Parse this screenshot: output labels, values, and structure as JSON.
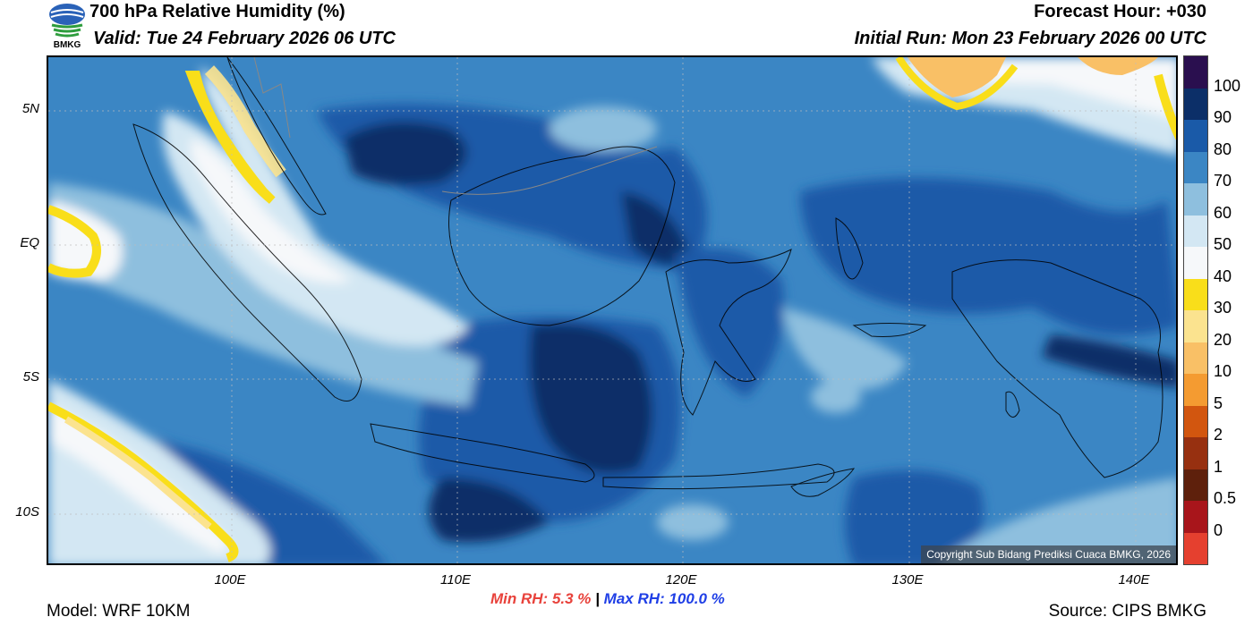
{
  "header": {
    "title": "700 hPa Relative Humidity (%)",
    "valid": "Valid: Tue 24 February 2026 06 UTC",
    "forecast_hour": "Forecast Hour: +030",
    "initial_run": "Initial Run: Mon 23 February 2026 00 UTC",
    "logo_text": "BMKG"
  },
  "axes": {
    "y_labels": [
      "5N",
      "EQ",
      "5S",
      "10S"
    ],
    "x_labels": [
      "100E",
      "110E",
      "120E",
      "130E",
      "140E"
    ]
  },
  "colorbar": {
    "labels": [
      "100",
      "90",
      "80",
      "70",
      "60",
      "50",
      "40",
      "30",
      "20",
      "10",
      "5",
      "2",
      "1",
      "0.5",
      "0"
    ],
    "colors": [
      "#2a0f4f",
      "#0c2f68",
      "#1a5aa8",
      "#3b86c4",
      "#8ebfde",
      "#d3e7f3",
      "#f6f8fa",
      "#f9de1a",
      "#fbe38f",
      "#f9c066",
      "#f49b31",
      "#d2560f",
      "#973010",
      "#5e200c",
      "#a8151b",
      "#e5402f"
    ]
  },
  "map": {
    "copyright": "Copyright Sub Bidang Prediksi Cuaca BMKG, 2026"
  },
  "stats": {
    "min_label": "Min RH:",
    "min_value": "5.3 %",
    "separator": "|",
    "max_label": "Max RH:",
    "max_value": "100.0 %"
  },
  "footer": {
    "model": "Model: WRF 10KM",
    "source": "Source: CIPS BMKG"
  }
}
